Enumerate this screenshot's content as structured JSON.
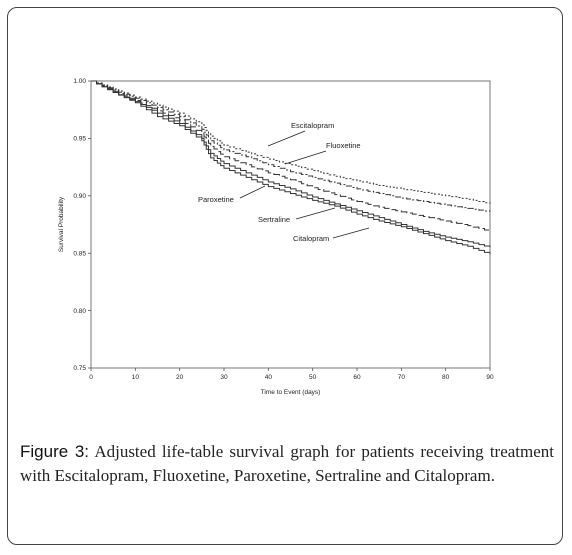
{
  "figure": {
    "label": "Figure 3:",
    "caption": "Adjusted life-table survival graph for patients receiving treatment with Escitalopram, Fluoxetine, Paroxetine, Sertraline and Citalopram."
  },
  "chart_data": {
    "type": "line",
    "xlabel": "Time to Event (days)",
    "ylabel": "Survival Probability",
    "xlim": [
      0,
      90
    ],
    "ylim": [
      0.75,
      1.0
    ],
    "xticks": [
      0,
      10,
      20,
      30,
      40,
      50,
      60,
      70,
      80,
      90
    ],
    "xtick_labels": [
      "0",
      "10",
      "20",
      "30",
      "40",
      "50",
      "60",
      "70",
      "80",
      "90"
    ],
    "yticks": [
      0.75,
      0.8,
      0.85,
      0.9,
      0.95,
      1.0
    ],
    "ytick_labels": [
      "0.75",
      "0.80",
      "0.85",
      "0.90",
      "0.95",
      "1.00"
    ],
    "grid": false,
    "series": [
      {
        "name": "Escitalopram",
        "dash": "2,2",
        "color": "#333333",
        "x": [
          0,
          5,
          10,
          15,
          20,
          25,
          27,
          30,
          35,
          40,
          45,
          50,
          55,
          60,
          65,
          70,
          75,
          80,
          85,
          90
        ],
        "y": [
          1.0,
          0.993,
          0.986,
          0.979,
          0.972,
          0.962,
          0.952,
          0.944,
          0.938,
          0.932,
          0.927,
          0.922,
          0.917,
          0.913,
          0.909,
          0.906,
          0.903,
          0.9,
          0.897,
          0.893
        ]
      },
      {
        "name": "Fluoxetine",
        "dash": "6,2,2,2",
        "color": "#333333",
        "x": [
          0,
          5,
          10,
          15,
          20,
          25,
          27,
          30,
          35,
          40,
          45,
          50,
          55,
          60,
          65,
          70,
          75,
          80,
          85,
          90
        ],
        "y": [
          1.0,
          0.992,
          0.985,
          0.977,
          0.969,
          0.958,
          0.948,
          0.94,
          0.934,
          0.927,
          0.921,
          0.916,
          0.911,
          0.906,
          0.902,
          0.898,
          0.895,
          0.892,
          0.889,
          0.886
        ]
      },
      {
        "name": "Paroxetine",
        "dash": "8,3",
        "color": "#333333",
        "x": [
          0,
          5,
          10,
          15,
          20,
          25,
          27,
          30,
          35,
          40,
          45,
          50,
          55,
          60,
          65,
          70,
          75,
          80,
          85,
          90
        ],
        "y": [
          1.0,
          0.991,
          0.983,
          0.974,
          0.966,
          0.954,
          0.943,
          0.934,
          0.927,
          0.92,
          0.914,
          0.907,
          0.901,
          0.895,
          0.89,
          0.886,
          0.882,
          0.878,
          0.874,
          0.869
        ]
      },
      {
        "name": "Sertraline",
        "dash": "",
        "color": "#333333",
        "x": [
          0,
          5,
          10,
          15,
          20,
          25,
          27,
          30,
          35,
          40,
          45,
          50,
          55,
          60,
          65,
          70,
          75,
          80,
          85,
          90
        ],
        "y": [
          1.0,
          0.99,
          0.982,
          0.972,
          0.963,
          0.95,
          0.937,
          0.928,
          0.92,
          0.912,
          0.906,
          0.899,
          0.893,
          0.887,
          0.881,
          0.875,
          0.869,
          0.864,
          0.86,
          0.855
        ]
      },
      {
        "name": "Citalopram",
        "dash": "",
        "color": "#333333",
        "x": [
          0,
          5,
          10,
          15,
          20,
          25,
          27,
          30,
          35,
          40,
          45,
          50,
          55,
          60,
          65,
          70,
          75,
          80,
          85,
          90
        ],
        "y": [
          1.0,
          0.99,
          0.981,
          0.969,
          0.961,
          0.948,
          0.933,
          0.924,
          0.916,
          0.908,
          0.902,
          0.896,
          0.891,
          0.884,
          0.878,
          0.873,
          0.867,
          0.861,
          0.856,
          0.849
        ]
      }
    ],
    "annotations": [
      {
        "text": "Escitalopram",
        "series": "Escitalopram",
        "at_x": 34
      },
      {
        "text": "Fluoxetine",
        "series": "Fluoxetine",
        "at_x": 43
      },
      {
        "text": "Paroxetine",
        "series": "Paroxetine",
        "at_x": 34
      },
      {
        "text": "Sertraline",
        "series": "Sertraline",
        "at_x": 54
      },
      {
        "text": "Citalopram",
        "series": "Citalopram",
        "at_x": 63
      }
    ]
  }
}
